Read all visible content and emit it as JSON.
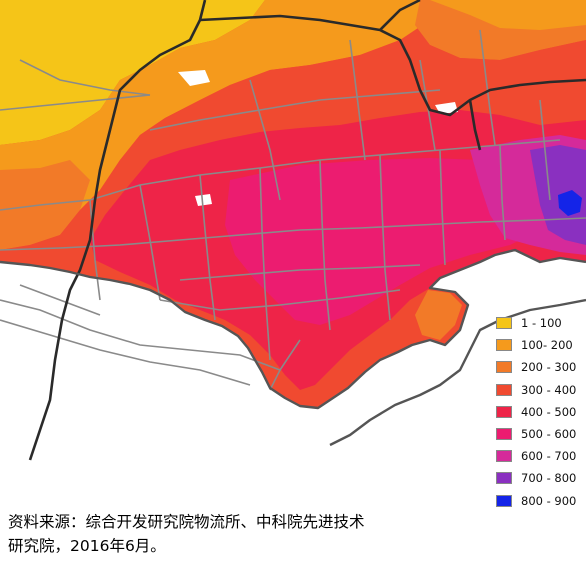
{
  "legend": {
    "items": [
      {
        "label": "1 - 100",
        "color": "#f5c518"
      },
      {
        "label": "100- 200",
        "color": "#f59a1c"
      },
      {
        "label": "200 - 300",
        "color": "#f27a28"
      },
      {
        "label": "300 - 400",
        "color": "#f04a30"
      },
      {
        "label": "400 - 500",
        "color": "#ee2448"
      },
      {
        "label": "500 - 600",
        "color": "#ec1c70"
      },
      {
        "label": "600 - 700",
        "color": "#d52a9a"
      },
      {
        "label": "700 - 800",
        "color": "#8a30c0"
      },
      {
        "label": "800 - 900",
        "color": "#1424e8"
      }
    ]
  },
  "source": {
    "line1": "资料来源：综合开发研究院物流所、中科院先进技术",
    "line2": "研究院，2016年6月。"
  },
  "map": {
    "background_color": "#ffffff",
    "road_color": "#8a8a8a",
    "boundary_color": "#2a2a2a"
  }
}
